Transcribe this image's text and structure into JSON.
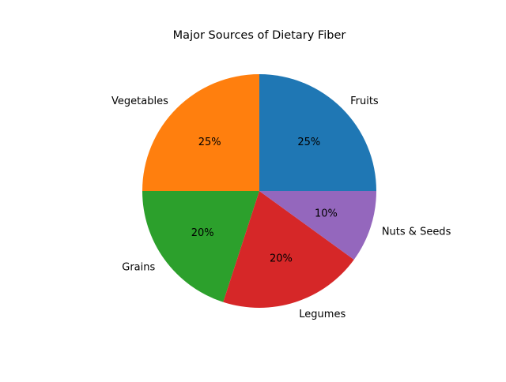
{
  "chart_data": {
    "type": "pie",
    "title": "Major Sources of Dietary Fiber",
    "categories": [
      "Fruits",
      "Vegetables",
      "Grains",
      "Legumes",
      "Nuts & Seeds"
    ],
    "values": [
      25,
      25,
      20,
      20,
      10
    ],
    "percent_labels": [
      "25%",
      "25%",
      "20%",
      "20%",
      "10%"
    ],
    "colors": [
      "#1f77b4",
      "#ff7f0e",
      "#2ca02c",
      "#d62728",
      "#9467bd"
    ],
    "start_angle": 0,
    "direction": "counterclockwise"
  }
}
